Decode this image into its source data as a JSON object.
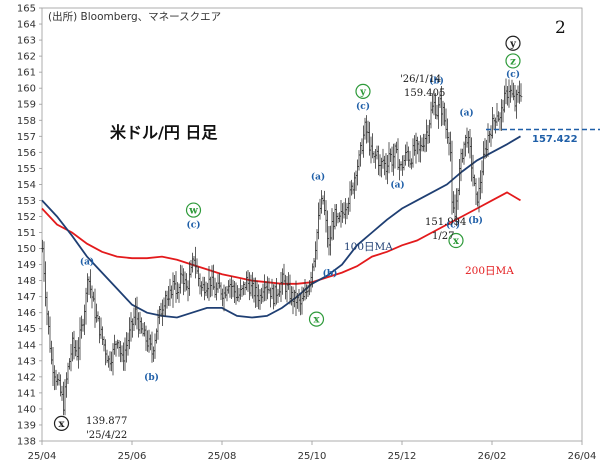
{
  "source": "(出所) Bloomberg、マネースクエア",
  "title": "米ドル/円 日足",
  "wave_count": "2",
  "chart_data": {
    "type": "candlestick",
    "ylim": [
      138,
      165
    ],
    "yticks": [
      138,
      139,
      140,
      141,
      142,
      143,
      144,
      145,
      146,
      147,
      148,
      149,
      150,
      151,
      152,
      153,
      154,
      155,
      156,
      157,
      158,
      159,
      160,
      161,
      162,
      163,
      164,
      165
    ],
    "xticks": [
      {
        "label": "25/04",
        "x": 0
      },
      {
        "label": "25/06",
        "x": 60
      },
      {
        "label": "25/08",
        "x": 120
      },
      {
        "label": "25/10",
        "x": 180
      },
      {
        "label": "25/12",
        "x": 240
      },
      {
        "label": "26/02",
        "x": 300
      },
      {
        "label": "26/04",
        "x": 360
      }
    ],
    "price": [
      [
        0,
        150
      ],
      [
        3,
        146
      ],
      [
        6,
        143
      ],
      [
        9,
        142
      ],
      [
        12,
        141
      ],
      [
        14,
        140.3
      ],
      [
        17,
        142.5
      ],
      [
        20,
        144
      ],
      [
        23,
        143.5
      ],
      [
        26,
        145
      ],
      [
        29,
        147
      ],
      [
        30,
        148.5
      ],
      [
        32,
        147.5
      ],
      [
        35,
        146
      ],
      [
        38,
        145
      ],
      [
        41,
        144
      ],
      [
        44,
        143
      ],
      [
        47,
        143.5
      ],
      [
        50,
        144.5
      ],
      [
        53,
        143
      ],
      [
        56,
        144
      ],
      [
        59,
        145
      ],
      [
        62,
        146
      ],
      [
        65,
        145
      ],
      [
        68,
        144.5
      ],
      [
        71,
        144
      ],
      [
        73,
        143.5
      ],
      [
        75,
        144.5
      ],
      [
        77,
        145.5
      ],
      [
        80,
        146.5
      ],
      [
        82,
        147.2
      ],
      [
        84,
        146.5
      ],
      [
        86,
        147.5
      ],
      [
        88,
        148
      ],
      [
        90,
        147
      ],
      [
        93,
        148.5
      ],
      [
        96,
        147.5
      ],
      [
        99,
        148.5
      ],
      [
        101,
        149.5
      ],
      [
        103,
        148.5
      ],
      [
        106,
        147.5
      ],
      [
        109,
        147.8
      ],
      [
        112,
        148
      ],
      [
        115,
        147.3
      ],
      [
        118,
        147.5
      ],
      [
        121,
        147.2
      ],
      [
        124,
        148
      ],
      [
        127,
        147.5
      ],
      [
        130,
        147
      ],
      [
        133,
        147.3
      ],
      [
        136,
        148
      ],
      [
        139,
        147.5
      ],
      [
        142,
        147.2
      ],
      [
        145,
        147
      ],
      [
        148,
        148
      ],
      [
        151,
        147.5
      ],
      [
        154,
        147
      ],
      [
        157,
        147.5
      ],
      [
        160,
        148
      ],
      [
        163,
        147.5
      ],
      [
        166,
        147
      ],
      [
        169,
        146.8
      ],
      [
        172,
        146.5
      ],
      [
        175,
        147
      ],
      [
        178,
        148
      ],
      [
        181,
        149.5
      ],
      [
        183,
        151
      ],
      [
        185,
        152.5
      ],
      [
        187,
        153
      ],
      [
        189,
        151.5
      ],
      [
        191,
        150
      ],
      [
        193,
        151.5
      ],
      [
        195,
        152
      ],
      [
        197,
        151.5
      ],
      [
        199,
        152
      ],
      [
        201,
        152.5
      ],
      [
        203,
        153
      ],
      [
        205,
        153.3
      ],
      [
        207,
        154
      ],
      [
        209,
        155
      ],
      [
        211,
        155.5
      ],
      [
        213,
        156.5
      ],
      [
        215,
        157.5
      ],
      [
        217,
        157
      ],
      [
        219,
        156
      ],
      [
        221,
        155.5
      ],
      [
        223,
        156
      ],
      [
        225,
        155
      ],
      [
        227,
        155.5
      ],
      [
        229,
        155
      ],
      [
        231,
        156
      ],
      [
        233,
        155.5
      ],
      [
        235,
        156
      ],
      [
        237,
        155.5
      ],
      [
        239,
        155
      ],
      [
        241,
        155.5
      ],
      [
        243,
        156
      ],
      [
        245,
        155.5
      ],
      [
        247,
        156
      ],
      [
        249,
        156.3
      ],
      [
        251,
        156
      ],
      [
        253,
        156.5
      ],
      [
        255,
        157
      ],
      [
        257,
        157.5
      ],
      [
        259,
        158.5
      ],
      [
        261,
        159
      ],
      [
        263,
        158.5
      ],
      [
        265,
        159
      ],
      [
        267,
        158.5
      ],
      [
        269,
        157.5
      ],
      [
        271,
        157
      ],
      [
        272,
        156
      ],
      [
        273,
        152.5
      ],
      [
        275,
        152
      ],
      [
        277,
        154
      ],
      [
        279,
        155.5
      ],
      [
        281,
        156.5
      ],
      [
        283,
        157
      ],
      [
        285,
        156
      ],
      [
        287,
        154.5
      ],
      [
        289,
        153
      ],
      [
        291,
        153.5
      ],
      [
        293,
        155
      ],
      [
        295,
        156
      ],
      [
        297,
        157
      ],
      [
        299,
        157.5
      ],
      [
        301,
        158
      ],
      [
        303,
        158.5
      ],
      [
        305,
        158
      ],
      [
        307,
        159
      ],
      [
        309,
        159.5
      ],
      [
        311,
        160
      ],
      [
        313,
        159.5
      ],
      [
        315,
        159
      ],
      [
        317,
        159.5
      ],
      [
        319,
        159.8
      ]
    ],
    "ma100": [
      [
        0,
        153
      ],
      [
        10,
        152
      ],
      [
        20,
        150.8
      ],
      [
        30,
        149.5
      ],
      [
        40,
        148.5
      ],
      [
        50,
        147.5
      ],
      [
        60,
        146.5
      ],
      [
        70,
        146
      ],
      [
        80,
        145.8
      ],
      [
        90,
        145.7
      ],
      [
        100,
        146
      ],
      [
        110,
        146.3
      ],
      [
        120,
        146.3
      ],
      [
        130,
        145.8
      ],
      [
        140,
        145.7
      ],
      [
        150,
        145.8
      ],
      [
        160,
        146.3
      ],
      [
        170,
        147
      ],
      [
        180,
        147.8
      ],
      [
        190,
        148.3
      ],
      [
        200,
        149
      ],
      [
        210,
        150.2
      ],
      [
        220,
        151
      ],
      [
        230,
        151.8
      ],
      [
        240,
        152.5
      ],
      [
        250,
        153
      ],
      [
        260,
        153.5
      ],
      [
        270,
        154
      ],
      [
        280,
        154.8
      ],
      [
        290,
        155.5
      ],
      [
        300,
        156
      ],
      [
        310,
        156.5
      ],
      [
        319,
        157
      ]
    ],
    "ma200": [
      [
        0,
        152.5
      ],
      [
        10,
        151.5
      ],
      [
        20,
        151
      ],
      [
        30,
        150.3
      ],
      [
        40,
        149.8
      ],
      [
        50,
        149.5
      ],
      [
        60,
        149.4
      ],
      [
        70,
        149.4
      ],
      [
        80,
        149.5
      ],
      [
        90,
        149.3
      ],
      [
        100,
        149
      ],
      [
        110,
        148.7
      ],
      [
        120,
        148.4
      ],
      [
        130,
        148.2
      ],
      [
        140,
        148
      ],
      [
        150,
        147.9
      ],
      [
        160,
        147.8
      ],
      [
        170,
        147.8
      ],
      [
        180,
        147.9
      ],
      [
        190,
        148.2
      ],
      [
        200,
        148.5
      ],
      [
        210,
        148.9
      ],
      [
        220,
        149.5
      ],
      [
        230,
        149.8
      ],
      [
        240,
        150.2
      ],
      [
        250,
        150.5
      ],
      [
        260,
        151
      ],
      [
        270,
        151.5
      ],
      [
        280,
        152
      ],
      [
        290,
        152.5
      ],
      [
        300,
        153
      ],
      [
        310,
        153.5
      ],
      [
        319,
        153
      ]
    ],
    "dashed_level": 157.422,
    "labels": {
      "ma100": "100日MA",
      "ma200": "200日MA",
      "level": "157.422",
      "low_price": "139.877",
      "low_date": "'25/4/22",
      "high_date": "'26/1/14",
      "high_price": "159.405",
      "mid_price": "151.994",
      "mid_date": "1/27"
    },
    "wave_labels": [
      {
        "text": "(a)",
        "x": 30,
        "y": 149
      },
      {
        "text": "(b)",
        "x": 73,
        "y": 141.8
      },
      {
        "text": "(c)",
        "x": 101,
        "y": 151.3
      },
      {
        "text": "(a)",
        "x": 184,
        "y": 154.3
      },
      {
        "text": "(b)",
        "x": 192,
        "y": 148.3
      },
      {
        "text": "(c)",
        "x": 214,
        "y": 158.7
      },
      {
        "text": "(a)",
        "x": 237,
        "y": 153.8
      },
      {
        "text": "(b)",
        "x": 263,
        "y": 160.3
      },
      {
        "text": "(c)",
        "x": 274,
        "y": 151.3
      },
      {
        "text": "(a)",
        "x": 283,
        "y": 158.3
      },
      {
        "text": "(b)",
        "x": 289,
        "y": 151.6
      },
      {
        "text": "(c)",
        "x": 314,
        "y": 160.7
      }
    ],
    "circled_labels": [
      {
        "text": "w",
        "x": 101,
        "y": 152.4,
        "color": "green"
      },
      {
        "text": "x",
        "x": 183,
        "y": 145.6,
        "color": "green"
      },
      {
        "text": "y",
        "x": 214,
        "y": 159.8,
        "color": "green"
      },
      {
        "text": "x",
        "x": 276,
        "y": 150.5,
        "color": "green"
      },
      {
        "text": "z",
        "x": 314,
        "y": 161.7,
        "color": "green"
      },
      {
        "text": "y",
        "x": 314,
        "y": 162.8,
        "color": "black"
      },
      {
        "text": "x",
        "x": 13,
        "y": 139.1,
        "color": "black"
      }
    ]
  },
  "colors": {
    "price": "#333333",
    "ma100": "#1f3f73",
    "ma200": "#e31a1c",
    "wave": "#1f5fa8",
    "circle_green": "#2e9a3a",
    "dashed": "#1f5fa8"
  }
}
